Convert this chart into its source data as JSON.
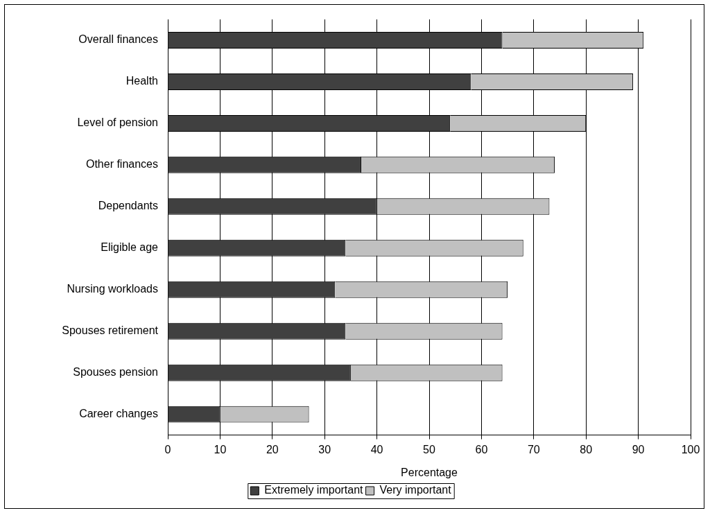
{
  "chart_data": {
    "type": "bar",
    "orientation": "horizontal",
    "stacked": true,
    "categories": [
      "Overall finances",
      "Health",
      "Level of pension",
      "Other finances",
      "Dependants",
      "Eligible age",
      "Nursing workloads",
      "Spouses retirement",
      "Spouses pension",
      "Career changes"
    ],
    "series": [
      {
        "name": "Extremely important",
        "color": "#404040",
        "values": [
          64,
          58,
          54,
          37,
          40,
          34,
          32,
          34,
          35,
          10
        ]
      },
      {
        "name": "Very important",
        "color": "#c0c0c0",
        "values": [
          27,
          31,
          26,
          37,
          33,
          34,
          33,
          30,
          29,
          17
        ]
      }
    ],
    "xlabel": "Percentage",
    "xlim": [
      0,
      100
    ],
    "xticks": [
      0,
      10,
      20,
      30,
      40,
      50,
      60,
      70,
      80,
      90,
      100
    ],
    "grid": "x",
    "legend": "bottom"
  }
}
